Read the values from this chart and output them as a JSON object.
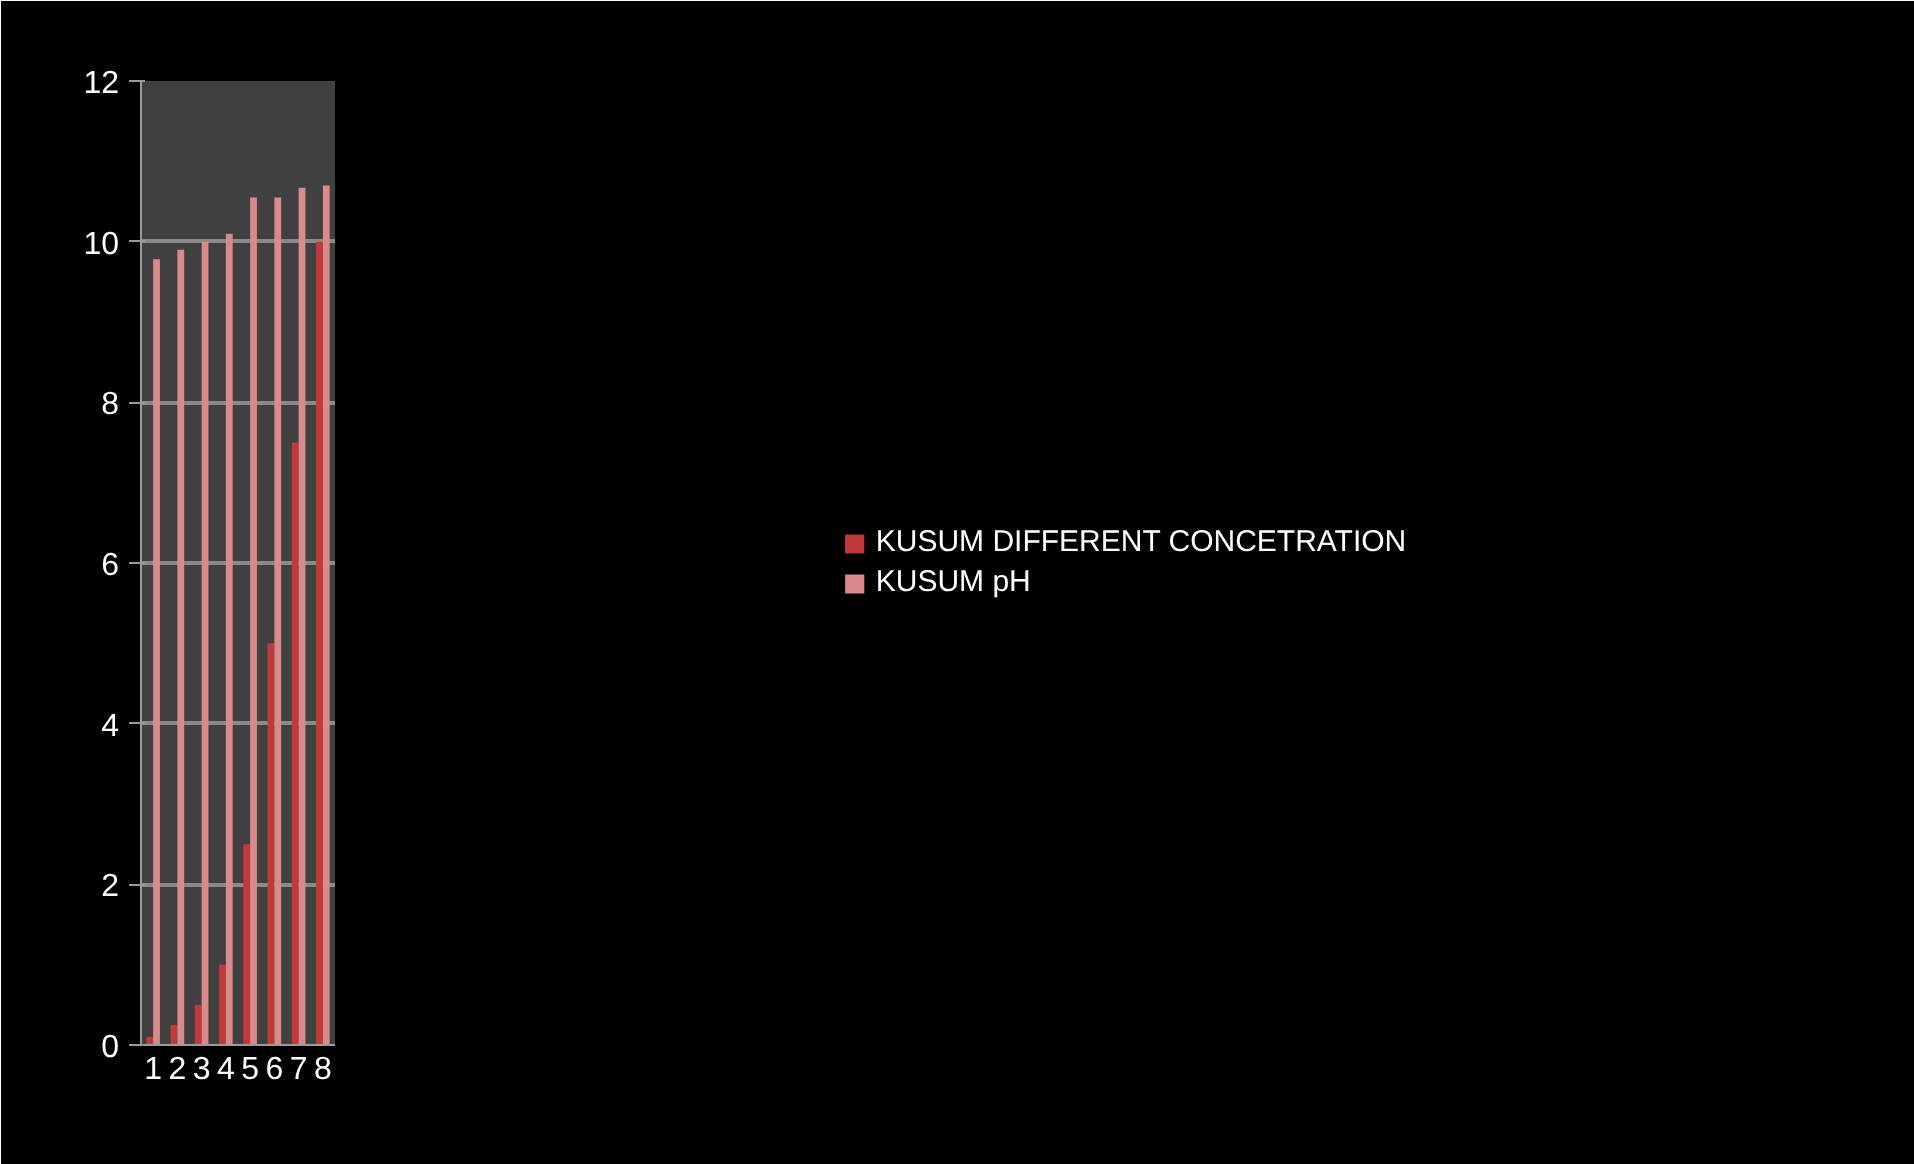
{
  "chart_data": {
    "type": "bar",
    "categories": [
      "1",
      "2",
      "3",
      "4",
      "5",
      "6",
      "7",
      "8"
    ],
    "series": [
      {
        "name": "KUSUM DIFFERENT CONCETRATION",
        "color": "#c0393b",
        "values": [
          0.1,
          0.25,
          0.5,
          1,
          2.5,
          5,
          7.5,
          10
        ]
      },
      {
        "name": "KUSUM pH",
        "color": "#d98b8b",
        "values": [
          9.78,
          9.9,
          10.0,
          10.1,
          10.55,
          10.55,
          10.67,
          10.7
        ]
      }
    ],
    "ylim": [
      0,
      12
    ],
    "yticks": [
      0,
      2,
      4,
      6,
      8,
      10,
      12
    ],
    "grid": "y",
    "legend": "right"
  }
}
